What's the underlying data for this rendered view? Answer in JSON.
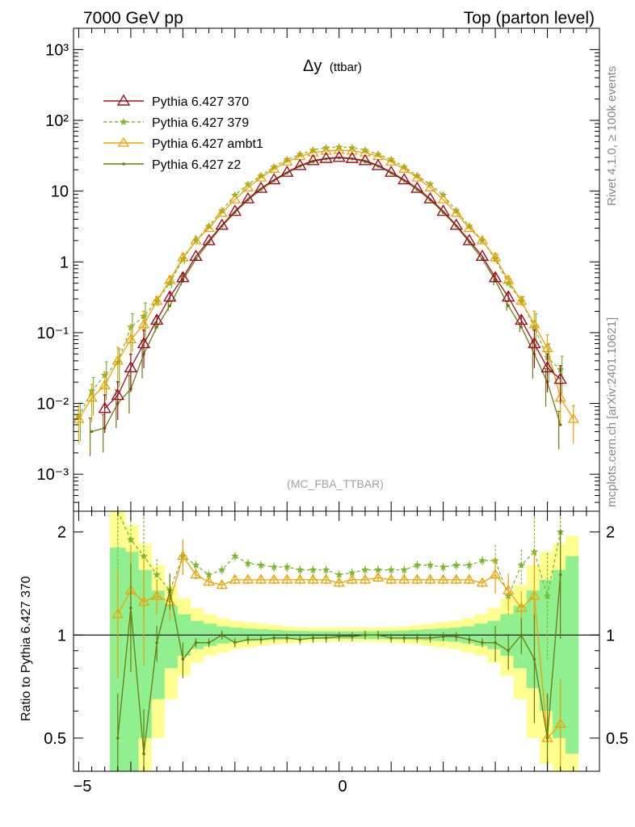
{
  "header": {
    "left_label": "7000 GeV pp",
    "right_label": "Top (parton level)"
  },
  "side_text": {
    "rivet": "Rivet 4.1.0, ≥ 100k events",
    "mcplots": "mcplots.cern.ch [arXiv:2401.10621]"
  },
  "colors": {
    "p370": "#9b1020",
    "p379": "#7cb82f",
    "ambt1": "#f0a000",
    "z2": "#6b7a10",
    "band_inner": "#90f090",
    "band_outer": "#ffff90"
  },
  "chart_data": [
    {
      "type": "line",
      "title": "Δy",
      "title_suffix": "(ttbar)",
      "watermark": "(MC_FBA_TTBAR)",
      "xlabel": "",
      "ylabel": "",
      "yscale": "log",
      "xlim": [
        -5.1,
        5.0
      ],
      "ylim": [
        0.0003,
        2000
      ],
      "x_ticks": [
        "−5",
        "0"
      ],
      "y_tick_labels": [
        "10⁻³",
        "10⁻²",
        "10⁻¹",
        "1",
        "10",
        "10²",
        "10³"
      ],
      "x": [
        -5.0,
        -4.75,
        -4.5,
        -4.25,
        -4.0,
        -3.75,
        -3.5,
        -3.25,
        -3.0,
        -2.75,
        -2.5,
        -2.25,
        -2.0,
        -1.75,
        -1.5,
        -1.25,
        -1.0,
        -0.75,
        -0.5,
        -0.25,
        0.0,
        0.25,
        0.5,
        0.75,
        1.0,
        1.25,
        1.5,
        1.75,
        2.0,
        2.25,
        2.5,
        2.75,
        3.0,
        3.25,
        3.5,
        3.75,
        4.0,
        4.25,
        4.5
      ],
      "series": [
        {
          "name": "Pythia 6.427 370",
          "marker": "triangle-open",
          "dash": false,
          "color_key": "p370",
          "values": [
            null,
            null,
            0.0085,
            0.013,
            0.032,
            0.07,
            0.15,
            0.32,
            0.6,
            1.2,
            2.0,
            3.3,
            5.2,
            7.8,
            11,
            14.5,
            18.5,
            23,
            27,
            29,
            30,
            29,
            27,
            23,
            18.5,
            14.5,
            11,
            7.8,
            5.2,
            3.3,
            2.0,
            1.2,
            0.6,
            0.32,
            0.15,
            0.07,
            0.032,
            0.022,
            null
          ]
        },
        {
          "name": "Pythia 6.427 379",
          "marker": "star",
          "dash": true,
          "color_key": "p379",
          "values": [
            0.0065,
            0.015,
            0.025,
            0.038,
            0.12,
            0.17,
            0.28,
            0.5,
            1.1,
            2.0,
            3.2,
            5.3,
            8.8,
            12.5,
            16.5,
            22,
            28,
            33,
            38,
            41,
            42,
            41,
            38,
            33,
            28,
            22,
            16.5,
            12.5,
            8.8,
            5.3,
            3.2,
            2.0,
            1.1,
            0.5,
            0.28,
            0.12,
            0.045,
            0.03,
            null
          ]
        },
        {
          "name": "Pythia 6.427 ambt1",
          "marker": "triangle-open-small",
          "dash": false,
          "color_key": "ambt1",
          "values": [
            0.006,
            0.012,
            0.018,
            0.04,
            0.08,
            0.13,
            0.28,
            0.55,
            1.15,
            2.0,
            3.0,
            4.9,
            7.6,
            11.2,
            15.5,
            20.5,
            26,
            31,
            35,
            37,
            38,
            37,
            35,
            31,
            26,
            20.5,
            15.5,
            11.2,
            7.6,
            4.9,
            3.0,
            2.0,
            1.15,
            0.55,
            0.28,
            0.13,
            0.06,
            0.012,
            0.006
          ]
        },
        {
          "name": "Pythia 6.427 z2",
          "marker": "dot",
          "dash": false,
          "color_key": "z2",
          "values": [
            null,
            0.004,
            0.0045,
            0.01,
            0.016,
            0.05,
            0.12,
            0.24,
            0.55,
            1.1,
            1.9,
            3.2,
            5.0,
            7.5,
            10.5,
            14,
            18,
            22.5,
            26,
            28.5,
            29.5,
            28.5,
            26,
            22.5,
            18,
            14,
            10.5,
            7.5,
            5.0,
            3.2,
            1.9,
            1.1,
            0.55,
            0.24,
            0.12,
            0.05,
            0.02,
            0.005,
            null
          ]
        }
      ]
    },
    {
      "type": "line",
      "title": "",
      "xlabel": "",
      "ylabel": "Ratio to Pythia 6.427 370",
      "yscale": "log",
      "xlim": [
        -5.1,
        5.0
      ],
      "ylim": [
        0.4,
        2.3
      ],
      "x_ticks": [
        "−5",
        "0"
      ],
      "y_ticks": [
        "0.5",
        "1",
        "2"
      ],
      "reference_line": 1,
      "x": [
        -4.25,
        -4.0,
        -3.75,
        -3.5,
        -3.25,
        -3.0,
        -2.75,
        -2.5,
        -2.25,
        -2.0,
        -1.75,
        -1.5,
        -1.25,
        -1.0,
        -0.75,
        -0.5,
        -0.25,
        0.0,
        0.25,
        0.5,
        0.75,
        1.0,
        1.25,
        1.5,
        1.75,
        2.0,
        2.25,
        2.5,
        2.75,
        3.0,
        3.25,
        3.5,
        3.75,
        4.0,
        4.25
      ],
      "band_x": [
        -4.4,
        -4.1,
        -3.85,
        -3.6,
        -3.35,
        -3.1,
        -2.85,
        -2.6,
        -2.35,
        -2.1,
        -1.85,
        -1.6,
        -1.35,
        -1.1,
        -0.85,
        -0.6,
        -0.35,
        -0.1,
        0.1,
        0.35,
        0.6,
        0.85,
        1.1,
        1.35,
        1.6,
        1.85,
        2.1,
        2.35,
        2.6,
        2.85,
        3.1,
        3.35,
        3.6,
        3.85,
        4.1,
        4.35
      ],
      "band_inner_up": [
        1.8,
        1.75,
        1.55,
        1.35,
        1.22,
        1.15,
        1.1,
        1.08,
        1.06,
        1.05,
        1.045,
        1.04,
        1.035,
        1.03,
        1.028,
        1.026,
        1.025,
        1.025,
        1.025,
        1.025,
        1.026,
        1.028,
        1.03,
        1.035,
        1.04,
        1.045,
        1.05,
        1.06,
        1.08,
        1.1,
        1.15,
        1.22,
        1.35,
        1.45,
        1.55,
        1.7
      ],
      "band_inner_down": [
        0.35,
        0.4,
        0.5,
        0.65,
        0.8,
        0.87,
        0.91,
        0.93,
        0.945,
        0.955,
        0.96,
        0.965,
        0.968,
        0.97,
        0.972,
        0.974,
        0.975,
        0.975,
        0.975,
        0.975,
        0.974,
        0.972,
        0.97,
        0.968,
        0.965,
        0.96,
        0.955,
        0.945,
        0.93,
        0.91,
        0.87,
        0.8,
        0.7,
        0.6,
        0.5,
        0.45
      ],
      "band_outer_up": [
        2.3,
        2.1,
        1.85,
        1.6,
        1.4,
        1.28,
        1.2,
        1.15,
        1.12,
        1.1,
        1.09,
        1.08,
        1.07,
        1.06,
        1.055,
        1.05,
        1.05,
        1.05,
        1.05,
        1.05,
        1.05,
        1.055,
        1.06,
        1.07,
        1.08,
        1.09,
        1.1,
        1.12,
        1.15,
        1.2,
        1.28,
        1.4,
        1.6,
        1.75,
        1.85,
        1.95
      ],
      "band_outer_down": [
        0.3,
        0.32,
        0.38,
        0.5,
        0.65,
        0.76,
        0.83,
        0.87,
        0.89,
        0.91,
        0.92,
        0.93,
        0.94,
        0.945,
        0.95,
        0.955,
        0.955,
        0.955,
        0.955,
        0.955,
        0.955,
        0.95,
        0.945,
        0.94,
        0.93,
        0.92,
        0.91,
        0.89,
        0.87,
        0.83,
        0.76,
        0.65,
        0.5,
        0.42,
        0.38,
        0.35
      ],
      "series": [
        {
          "name": "Pythia 6.427 379",
          "marker": "star",
          "dash": true,
          "color_key": "p379",
          "values": [
            2.4,
            1.9,
            1.7,
            1.5,
            1.35,
            1.7,
            1.6,
            1.5,
            1.55,
            1.7,
            1.62,
            1.6,
            1.58,
            1.58,
            1.55,
            1.55,
            1.55,
            1.5,
            1.52,
            1.55,
            1.55,
            1.55,
            1.55,
            1.6,
            1.6,
            1.58,
            1.6,
            1.6,
            1.65,
            1.65,
            1.3,
            1.6,
            1.75,
            1.3,
            2.0
          ]
        },
        {
          "name": "Pythia 6.427 ambt1",
          "marker": "triangle-open-small",
          "dash": false,
          "color_key": "ambt1",
          "values": [
            1.15,
            1.35,
            1.25,
            1.3,
            1.25,
            1.7,
            1.5,
            1.43,
            1.4,
            1.45,
            1.45,
            1.45,
            1.45,
            1.45,
            1.45,
            1.45,
            1.45,
            1.42,
            1.45,
            1.45,
            1.47,
            1.45,
            1.45,
            1.45,
            1.45,
            1.45,
            1.45,
            1.45,
            1.42,
            1.5,
            1.35,
            1.2,
            1.3,
            0.5,
            0.55
          ]
        },
        {
          "name": "Pythia 6.427 z2",
          "marker": "dot",
          "dash": false,
          "color_key": "z2",
          "values": [
            0.5,
            1.2,
            0.45,
            0.95,
            1.35,
            0.85,
            0.95,
            0.95,
            1.0,
            0.95,
            0.97,
            0.97,
            0.98,
            0.98,
            0.97,
            0.98,
            0.98,
            0.99,
            0.99,
            1.0,
            1.0,
            0.98,
            0.98,
            0.98,
            0.98,
            0.99,
            0.99,
            0.97,
            0.95,
            0.95,
            0.9,
            1.0,
            0.85,
            0.5,
            1.5
          ]
        }
      ]
    }
  ]
}
